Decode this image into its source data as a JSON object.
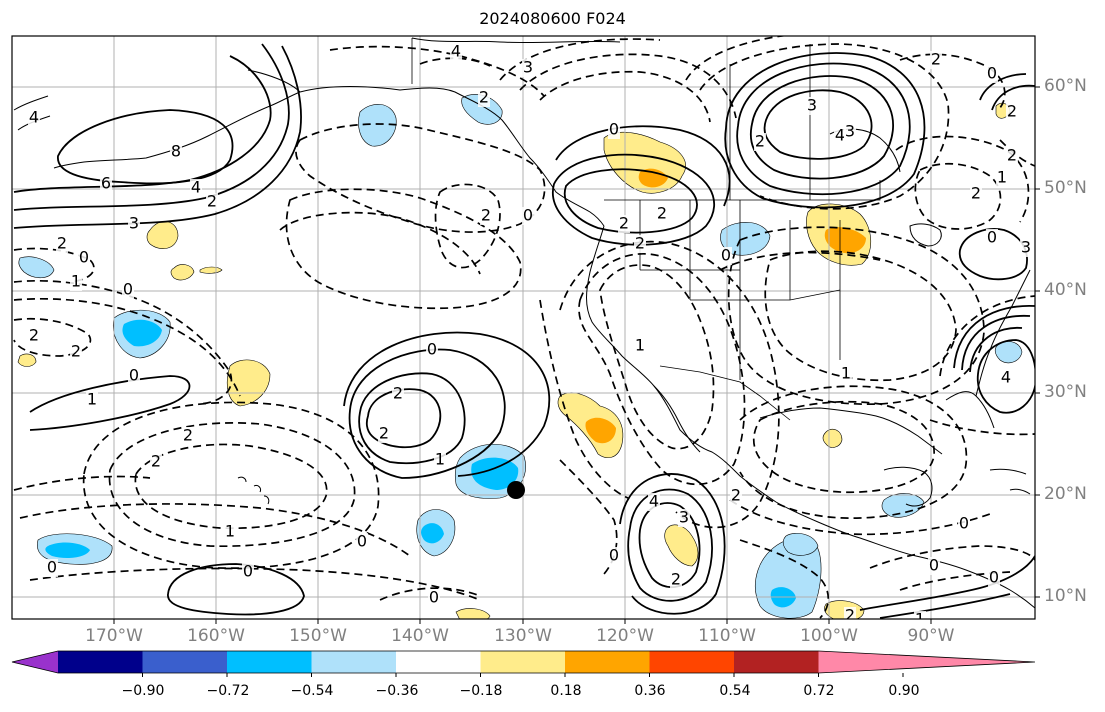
{
  "title": "2024080600 F024",
  "lat_labels": [
    "60°N",
    "50°N",
    "40°N",
    "30°N",
    "20°N",
    "10°N"
  ],
  "lon_labels": [
    "170°W",
    "160°W",
    "150°W",
    "140°W",
    "130°W",
    "120°W",
    "110°W",
    "100°W",
    "90°W"
  ],
  "colorbar": {
    "ticks": [
      "−0.90",
      "−0.72",
      "−0.54",
      "−0.36",
      "−0.18",
      "0.18",
      "0.36",
      "0.54",
      "0.72",
      "0.90"
    ],
    "colors": [
      "#9932cc",
      "#00008b",
      "#3a5fcd",
      "#00bfff",
      "#afe1fa",
      "#ffffff",
      "#ffec8b",
      "#ffa500",
      "#ff4500",
      "#b22222",
      "#ff88a8"
    ]
  },
  "contour_labels": [
    {
      "text": "4"
    },
    {
      "text": "8"
    },
    {
      "text": "6"
    },
    {
      "text": "4"
    },
    {
      "text": "2"
    },
    {
      "text": "3"
    },
    {
      "text": "2"
    },
    {
      "text": "0"
    },
    {
      "text": "1"
    },
    {
      "text": "0"
    },
    {
      "text": "2"
    },
    {
      "text": "2"
    },
    {
      "text": "0"
    },
    {
      "text": "1"
    },
    {
      "text": "2"
    },
    {
      "text": "2"
    },
    {
      "text": "1"
    },
    {
      "text": "0"
    },
    {
      "text": "0"
    },
    {
      "text": "0"
    },
    {
      "text": "0"
    },
    {
      "text": "2"
    },
    {
      "text": "2"
    },
    {
      "text": "1"
    },
    {
      "text": "2"
    },
    {
      "text": "0"
    },
    {
      "text": "3"
    },
    {
      "text": "4"
    },
    {
      "text": "2"
    },
    {
      "text": "0"
    },
    {
      "text": "2"
    },
    {
      "text": "2"
    },
    {
      "text": "2"
    },
    {
      "text": "3"
    },
    {
      "text": "4"
    },
    {
      "text": "3"
    },
    {
      "text": "0"
    },
    {
      "text": "2"
    },
    {
      "text": "0"
    },
    {
      "text": "1"
    },
    {
      "text": "2"
    },
    {
      "text": "2"
    },
    {
      "text": "4"
    },
    {
      "text": "3"
    },
    {
      "text": "4"
    },
    {
      "text": "2"
    },
    {
      "text": "2"
    },
    {
      "text": "0"
    },
    {
      "text": "0"
    },
    {
      "text": "1"
    },
    {
      "text": "2"
    },
    {
      "text": "0"
    },
    {
      "text": "0"
    },
    {
      "text": "0"
    },
    {
      "text": "0"
    },
    {
      "text": "3"
    },
    {
      "text": "2"
    },
    {
      "text": "2"
    },
    {
      "text": "1"
    },
    {
      "text": "1"
    }
  ],
  "marker": {
    "type": "point",
    "lat": 20.5,
    "lon": -130.3
  }
}
